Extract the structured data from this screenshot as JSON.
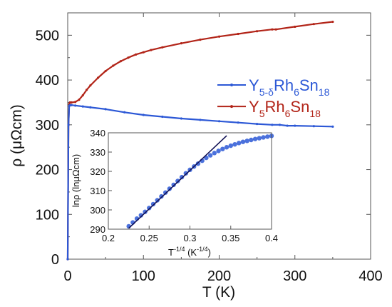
{
  "chart_data": [
    {
      "type": "line",
      "xlabel": "T (K)",
      "ylabel": "ρ (μΩcm)",
      "xlim": [
        0,
        400
      ],
      "ylim": [
        0,
        550
      ],
      "xticks": [
        "0",
        "100",
        "200",
        "300",
        "400"
      ],
      "yticks": [
        "0",
        "100",
        "200",
        "300",
        "400",
        "500"
      ],
      "grid": false,
      "legend_position": "right",
      "series": [
        {
          "name": "Y5Rh6Sn18",
          "name_parts": [
            [
              "Y",
              "5"
            ],
            [
              "Rh",
              "6"
            ],
            [
              "Sn",
              "18"
            ]
          ],
          "color": "#b22418",
          "x": [
            0,
            1,
            2,
            3,
            5,
            10,
            15,
            20,
            25,
            30,
            40,
            50,
            60,
            70,
            80,
            90,
            100,
            110,
            125,
            150,
            175,
            200,
            225,
            250,
            270,
            275,
            300,
            325,
            350
          ],
          "y": [
            0,
            300,
            346,
            350,
            350,
            351,
            356,
            366,
            378,
            388,
            405,
            420,
            432,
            442,
            450,
            457,
            462,
            467,
            473,
            482,
            490,
            497,
            503,
            509,
            513,
            513,
            519,
            525,
            530
          ]
        },
        {
          "name": "Y5-δRh6Sn18",
          "name_parts": [
            [
              "Y",
              "5-δ"
            ],
            [
              "Rh",
              "6"
            ],
            [
              "Sn",
              "18"
            ]
          ],
          "color": "#2c58d6",
          "x": [
            0,
            1,
            2,
            3,
            5,
            10,
            20,
            30,
            50,
            75,
            100,
            125,
            150,
            175,
            200,
            225,
            250,
            270,
            280,
            290,
            300,
            325,
            350
          ],
          "y": [
            0,
            300,
            342,
            344,
            344,
            343,
            341,
            339,
            335,
            328,
            322,
            318,
            314,
            311,
            308,
            305,
            302,
            300,
            300,
            298,
            298,
            297,
            296
          ]
        }
      ]
    },
    {
      "type": "scatter",
      "inset": true,
      "xlabel_main": "T",
      "xlabel_sup": "-1/4",
      "xlabel_unit": " (K",
      "xlabel_unit_sup": "-1/4",
      "xlabel_close": ")",
      "ylabel": "lnρ (lnμΩcm)",
      "xlim": [
        0.2,
        0.4
      ],
      "ylim": [
        290,
        340
      ],
      "xticks": [
        "0.2",
        "0.25",
        "0.3",
        "0.35",
        "0.4"
      ],
      "yticks": [
        "290",
        "300",
        "310",
        "320",
        "330",
        "340"
      ],
      "series": [
        {
          "type": "scatter",
          "color": "#2c58d6",
          "x": [
            0.225,
            0.23,
            0.235,
            0.24,
            0.245,
            0.25,
            0.255,
            0.26,
            0.265,
            0.27,
            0.275,
            0.28,
            0.285,
            0.29,
            0.295,
            0.3,
            0.305,
            0.31,
            0.315,
            0.32,
            0.325,
            0.33,
            0.335,
            0.34,
            0.345,
            0.35,
            0.355,
            0.36,
            0.365,
            0.37,
            0.375,
            0.38,
            0.385,
            0.39,
            0.395,
            0.4
          ],
          "y": [
            291.5,
            293.5,
            295.5,
            297.2,
            299.0,
            301.0,
            303.0,
            305.0,
            307.0,
            309.0,
            311.0,
            313.0,
            315.0,
            317.0,
            319.0,
            320.8,
            322.5,
            324.0,
            325.5,
            327.0,
            328.3,
            329.5,
            330.6,
            331.6,
            332.5,
            333.3,
            334.0,
            334.7,
            335.3,
            335.8,
            336.3,
            336.8,
            337.2,
            337.6,
            338.0,
            338.4
          ]
        },
        {
          "type": "line",
          "color": "#111155",
          "x": [
            0.225,
            0.345
          ],
          "y": [
            290.5,
            338.5
          ]
        }
      ]
    }
  ]
}
